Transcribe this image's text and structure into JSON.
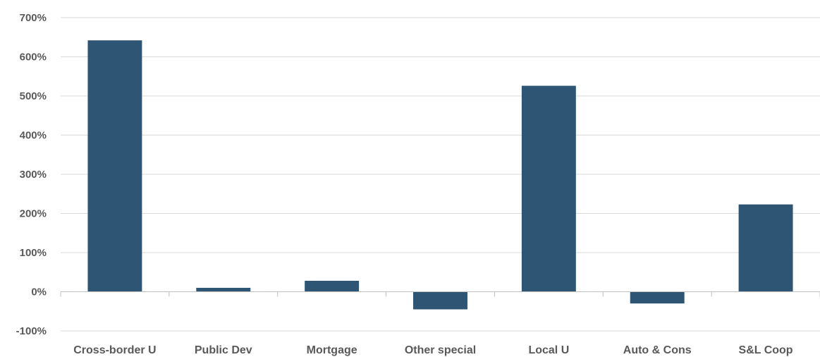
{
  "chart_data": {
    "type": "bar",
    "title": "",
    "xlabel": "",
    "ylabel": "",
    "categories": [
      "Cross-border U",
      "Public Dev",
      "Mortgage",
      "Other special",
      "Local U",
      "Auto & Cons",
      "S&L Coop"
    ],
    "values": [
      642,
      10,
      28,
      -45,
      526,
      -30,
      223
    ],
    "unit": "%",
    "ylim": [
      -100,
      700
    ],
    "yticks": [
      -100,
      0,
      100,
      200,
      300,
      400,
      500,
      600,
      700
    ],
    "ytick_labels": [
      "-100%",
      "0%",
      "100%",
      "200%",
      "300%",
      "400%",
      "500%",
      "600%",
      "700%"
    ],
    "grid": true,
    "legend": "none",
    "colors": {
      "bar": "#2e5573",
      "grid": "#d9d9d9",
      "axis": "#bfbfbf",
      "text": "#595959"
    }
  }
}
